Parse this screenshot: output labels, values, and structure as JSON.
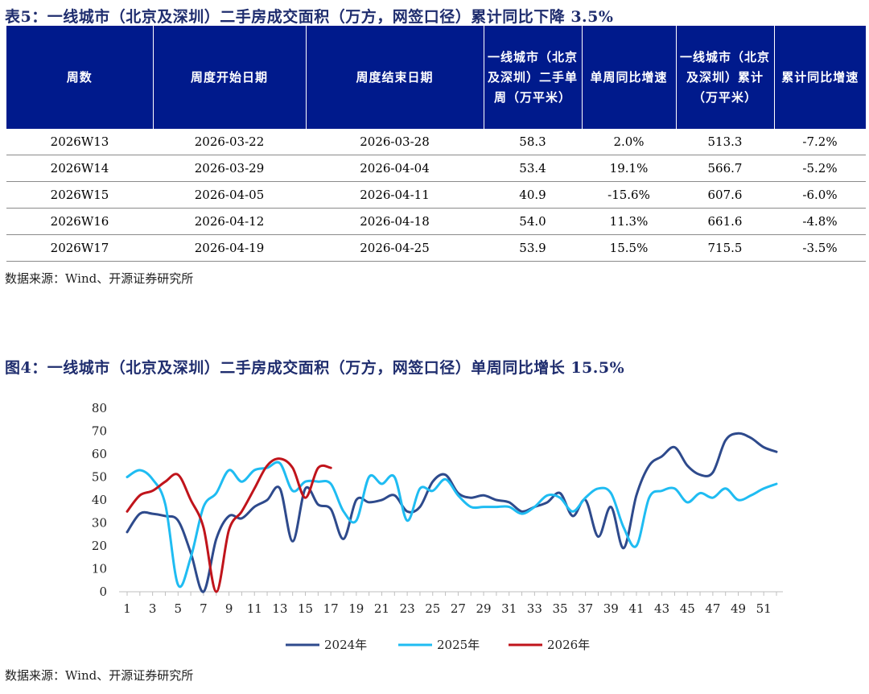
{
  "table_section": {
    "title": "表5：一线城市（北京及深圳）二手房成交面积（万方，网签口径）累计同比下降 3.5%",
    "headers": [
      "周数",
      "周度开始日期",
      "周度结束日期",
      "一线城市（北京及深圳）二手单周（万平米）",
      "单周同比增速",
      "一线城市（北京及深圳）累计（万平米）",
      "累计同比增速"
    ],
    "rows": [
      [
        "2026W13",
        "2026-03-22",
        "2026-03-28",
        "58.3",
        "2.0%",
        "513.3",
        "-7.2%"
      ],
      [
        "2026W14",
        "2026-03-29",
        "2026-04-04",
        "53.4",
        "19.1%",
        "566.7",
        "-5.2%"
      ],
      [
        "2026W15",
        "2026-04-05",
        "2026-04-11",
        "40.9",
        "-15.6%",
        "607.6",
        "-6.0%"
      ],
      [
        "2026W16",
        "2026-04-12",
        "2026-04-18",
        "54.0",
        "11.3%",
        "661.6",
        "-4.8%"
      ],
      [
        "2026W17",
        "2026-04-19",
        "2026-04-25",
        "53.9",
        "15.5%",
        "715.5",
        "-3.5%"
      ]
    ],
    "source": "数据来源：Wind、开源证券研究所"
  },
  "figure_section": {
    "title": "图4：一线城市（北京及深圳）二手房成交面积（万方，网签口径）单周同比增长 15.5%",
    "source": "数据来源：Wind、开源证券研究所"
  },
  "chart_data": {
    "type": "line",
    "title": "",
    "xlabel": "",
    "ylabel": "",
    "ylim": [
      0,
      80
    ],
    "yticks": [
      0,
      10,
      20,
      30,
      40,
      50,
      60,
      70,
      80
    ],
    "xticks": [
      1,
      3,
      5,
      7,
      9,
      11,
      13,
      15,
      17,
      19,
      21,
      23,
      25,
      27,
      29,
      31,
      33,
      35,
      37,
      39,
      41,
      43,
      45,
      47,
      49,
      51
    ],
    "xlim": [
      1,
      52
    ],
    "legend_position": "bottom",
    "series": [
      {
        "name": "2024年",
        "color": "#2e4a8c",
        "x": [
          1,
          2,
          3,
          4,
          5,
          6,
          7,
          8,
          9,
          10,
          11,
          12,
          13,
          14,
          15,
          16,
          17,
          18,
          19,
          20,
          21,
          22,
          23,
          24,
          25,
          26,
          27,
          28,
          29,
          30,
          31,
          32,
          33,
          34,
          35,
          36,
          37,
          38,
          39,
          40,
          41,
          42,
          43,
          44,
          45,
          46,
          47,
          48,
          49,
          50,
          51,
          52
        ],
        "values": [
          26,
          34,
          34,
          33,
          31,
          17,
          0,
          23,
          33,
          32,
          37,
          40,
          45,
          22,
          45,
          38,
          36,
          23,
          40,
          39,
          40,
          42,
          35,
          37,
          48,
          51,
          43,
          41,
          42,
          40,
          39,
          35,
          37,
          39,
          43,
          33,
          40,
          24,
          37,
          19,
          42,
          55,
          59,
          63,
          55,
          51,
          52,
          66,
          69,
          67,
          63,
          61
        ]
      },
      {
        "name": "2025年",
        "color": "#1fbcf2",
        "x": [
          1,
          2,
          3,
          4,
          5,
          6,
          7,
          8,
          9,
          10,
          11,
          12,
          13,
          14,
          15,
          16,
          17,
          18,
          19,
          20,
          21,
          22,
          23,
          24,
          25,
          26,
          27,
          28,
          29,
          30,
          31,
          32,
          33,
          34,
          35,
          36,
          37,
          38,
          39,
          40,
          41,
          42,
          43,
          44,
          45,
          46,
          47,
          48,
          49,
          50,
          51,
          52
        ],
        "values": [
          50,
          53,
          49,
          38,
          3,
          15,
          37,
          43,
          53,
          48,
          53,
          54,
          56,
          44,
          48,
          48,
          47,
          35,
          31,
          50,
          47,
          50,
          31,
          45,
          44,
          49,
          42,
          37,
          37,
          37,
          37,
          34,
          37,
          42,
          41,
          35,
          41,
          45,
          43,
          28,
          20,
          41,
          44,
          45,
          39,
          43,
          41,
          45,
          40,
          42,
          45,
          47
        ]
      },
      {
        "name": "2026年",
        "color": "#c0141b",
        "x": [
          1,
          2,
          3,
          4,
          5,
          6,
          7,
          8,
          9,
          10,
          11,
          12,
          13,
          14,
          15,
          16,
          17
        ],
        "values": [
          35,
          42,
          44,
          48,
          51,
          40,
          28,
          0,
          27,
          35,
          45,
          55,
          58,
          54,
          41,
          54,
          54
        ]
      }
    ]
  }
}
